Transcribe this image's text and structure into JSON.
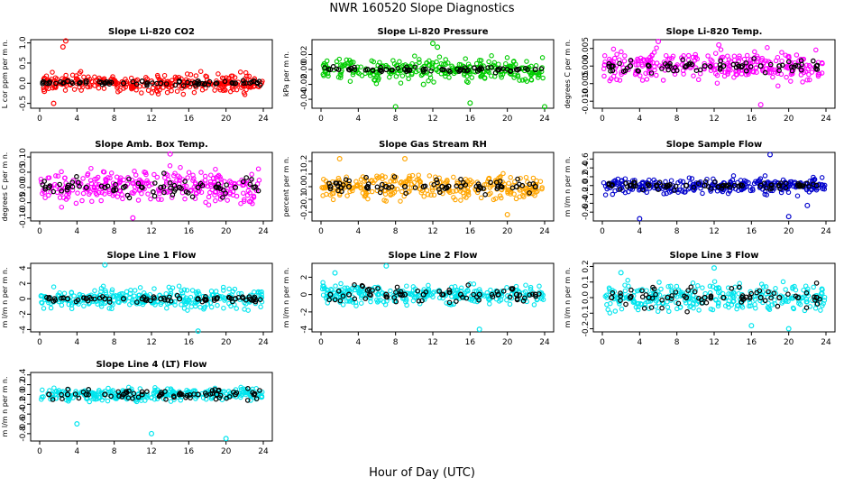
{
  "title": "NWR  160520  Slope Diagnostics",
  "xlabel": "Hour of Day (UTC)",
  "colors": {
    "background": "#ffffff",
    "overlay": "#000000",
    "axis": "#000000"
  },
  "chart_data": [
    {
      "type": "scatter",
      "title": "Slope Li-820 CO2",
      "ylabel": "L cor ppm per m n.",
      "color": "#ff0000",
      "xlim": [
        0,
        24
      ],
      "ylim": [
        -0.62,
        1.08
      ],
      "x_ticks": [
        0,
        4,
        8,
        12,
        16,
        20,
        24
      ],
      "y_ticks": [
        -0.5,
        0.0,
        0.5,
        1.0
      ],
      "y_tick_labels": [
        "-0.5",
        "0.0",
        "0.5",
        "1.0"
      ],
      "spread": 0.18,
      "overlay_spread": 0.05,
      "series": [
        {
          "x": [
            0.5,
            1.5,
            2.5,
            2.8,
            4,
            6,
            8,
            10,
            12,
            14,
            16,
            18,
            20,
            22,
            23.8
          ],
          "y": [
            -0.2,
            -0.5,
            0.9,
            1.05,
            0.0,
            0.05,
            0.0,
            0.0,
            0.05,
            0.0,
            0.05,
            0.0,
            0.05,
            0.0,
            0.0
          ]
        }
      ],
      "overlay": {
        "x": [
          1,
          3,
          5,
          7,
          9,
          11,
          13,
          15,
          17,
          19,
          21,
          23
        ],
        "y": [
          0.0,
          0.05,
          0.05,
          0.0,
          0.0,
          0.05,
          0.0,
          0.05,
          0.05,
          0.0,
          0.0,
          0.05
        ]
      }
    },
    {
      "type": "scatter",
      "title": "Slope Li-820 Pressure",
      "ylabel": "kPa per m n.",
      "color": "#00cc00",
      "xlim": [
        0,
        24
      ],
      "ylim": [
        -0.052,
        0.04
      ],
      "x_ticks": [
        0,
        4,
        8,
        12,
        16,
        20,
        24
      ],
      "y_ticks": [
        -0.04,
        -0.02,
        0.0,
        0.02
      ],
      "y_tick_labels": [
        "-0.04",
        "-0.02",
        "0.00",
        "0.02"
      ],
      "spread": 0.012,
      "overlay_spread": 0.003,
      "series": [
        {
          "x": [
            8,
            12,
            16,
            24,
            12.5,
            11
          ],
          "y": [
            -0.05,
            0.035,
            -0.045,
            -0.05,
            0.03,
            -0.02
          ]
        }
      ],
      "overlay": {
        "x": [
          1,
          3,
          5,
          7,
          9,
          11,
          13,
          15,
          17,
          19,
          21,
          23
        ],
        "y": [
          0.0,
          0.0,
          0.0,
          0.0,
          0.0,
          0.0,
          0.0,
          0.0,
          0.0,
          0.0,
          0.0,
          0.0
        ]
      }
    },
    {
      "type": "scatter",
      "title": "Slope Li-820 Temp.",
      "ylabel": "degrees C per m n.",
      "color": "#ff00ff",
      "xlim": [
        0,
        24
      ],
      "ylim": [
        -0.012,
        0.0075
      ],
      "x_ticks": [
        0,
        4,
        8,
        12,
        16,
        20,
        24
      ],
      "y_ticks": [
        -0.01,
        -0.005,
        0.0,
        0.005
      ],
      "y_tick_labels": [
        "-0.010",
        "-0.005",
        "0.000",
        "0.005"
      ],
      "spread": 0.0035,
      "overlay_spread": 0.002,
      "series": [
        {
          "x": [
            6,
            17,
            12.5
          ],
          "y": [
            0.007,
            -0.011,
            0.006
          ]
        }
      ],
      "overlay": {
        "x": [
          1,
          3,
          5,
          7,
          9,
          11,
          13,
          15,
          17,
          19,
          21,
          23
        ],
        "y": [
          0.0,
          0.0,
          0.0,
          0.0,
          0.0,
          0.0,
          0.0,
          0.0,
          0.0,
          0.0,
          0.0,
          0.0
        ]
      }
    },
    {
      "type": "scatter",
      "title": "Slope Amb. Box Temp.",
      "ylabel": "degrees C per m n.",
      "color": "#ff00ff",
      "xlim": [
        0,
        24
      ],
      "ylim": [
        -0.11,
        0.115
      ],
      "x_ticks": [
        0,
        4,
        8,
        12,
        16,
        20,
        24
      ],
      "y_ticks": [
        -0.1,
        -0.05,
        0.0,
        0.05,
        0.1
      ],
      "y_tick_labels": [
        "-0.10",
        "-0.05",
        "0.00",
        "0.05",
        "0.10"
      ],
      "spread": 0.045,
      "overlay_spread": 0.03,
      "series": [
        {
          "x": [
            14,
            10
          ],
          "y": [
            0.11,
            -0.1
          ]
        }
      ],
      "overlay": {
        "x": [
          1,
          3,
          5,
          7,
          9,
          11,
          13,
          15,
          17,
          19,
          21,
          23
        ],
        "y": [
          0.0,
          0.0,
          0.0,
          0.0,
          0.0,
          0.0,
          0.0,
          0.0,
          0.0,
          0.0,
          0.0,
          0.0
        ]
      }
    },
    {
      "type": "scatter",
      "title": "Slope Gas Stream RH",
      "ylabel": "percent per m n.",
      "color": "#ffa500",
      "xlim": [
        0,
        24
      ],
      "ylim": [
        -0.27,
        0.27
      ],
      "x_ticks": [
        0,
        4,
        8,
        12,
        16,
        20,
        24
      ],
      "y_ticks": [
        -0.2,
        -0.1,
        0.0,
        0.1,
        0.2
      ],
      "y_tick_labels": [
        "-0.2",
        "-0.1",
        "0.0",
        "0.1",
        "0.2"
      ],
      "spread": 0.08,
      "overlay_spread": 0.05,
      "series": [
        {
          "x": [
            2,
            9,
            20
          ],
          "y": [
            0.22,
            0.22,
            -0.22
          ]
        }
      ],
      "overlay": {
        "x": [
          1,
          3,
          5,
          7,
          9,
          11,
          13,
          15,
          17,
          19,
          21,
          23
        ],
        "y": [
          0.0,
          0.0,
          0.0,
          0.0,
          0.0,
          0.0,
          0.0,
          0.0,
          0.0,
          0.0,
          0.0,
          0.0
        ]
      }
    },
    {
      "type": "scatter",
      "title": "Slope Sample Flow",
      "ylabel": "m l/m n per m n.",
      "color": "#0000cc",
      "xlim": [
        0,
        24
      ],
      "ylim": [
        -0.8,
        0.75
      ],
      "x_ticks": [
        0,
        4,
        8,
        12,
        16,
        20,
        24
      ],
      "y_ticks": [
        -0.6,
        -0.4,
        -0.2,
        0.0,
        0.2,
        0.4,
        0.6
      ],
      "y_tick_labels": [
        "-0.6",
        "-0.4",
        "-0.2",
        "0.0",
        "0.2",
        "0.4",
        "0.6"
      ],
      "spread": 0.15,
      "overlay_spread": 0.08,
      "series": [
        {
          "x": [
            4,
            18,
            20,
            22
          ],
          "y": [
            -0.75,
            0.7,
            -0.7,
            -0.45
          ]
        }
      ],
      "overlay": {
        "x": [
          1,
          3,
          5,
          7,
          9,
          11,
          13,
          15,
          17,
          19,
          21,
          23
        ],
        "y": [
          0.0,
          0.0,
          0.0,
          0.0,
          0.0,
          0.0,
          0.0,
          0.0,
          0.0,
          0.0,
          0.0,
          0.0
        ]
      }
    },
    {
      "type": "scatter",
      "title": "Slope Line 1 Flow",
      "ylabel": "m l/m n per m n.",
      "color": "#00e5ee",
      "xlim": [
        0,
        24
      ],
      "ylim": [
        -4.3,
        4.6
      ],
      "x_ticks": [
        0,
        4,
        8,
        12,
        16,
        20,
        24
      ],
      "y_ticks": [
        -4,
        -2,
        0,
        2,
        4
      ],
      "y_tick_labels": [
        "-4",
        "-2",
        "0",
        "2",
        "4"
      ],
      "spread": 1.1,
      "overlay_spread": 0.35,
      "series": [
        {
          "x": [
            7,
            17
          ],
          "y": [
            4.4,
            -4.2
          ]
        }
      ],
      "overlay": {
        "x": [
          1,
          3,
          5,
          7,
          9,
          11,
          13,
          15,
          17,
          19,
          21,
          23
        ],
        "y": [
          0.0,
          0.0,
          0.0,
          0.0,
          0.0,
          0.0,
          0.0,
          0.0,
          0.0,
          0.0,
          0.0,
          0.0
        ]
      }
    },
    {
      "type": "scatter",
      "title": "Slope Line 2 Flow",
      "ylabel": "m l/m n per m n.",
      "color": "#00e5ee",
      "xlim": [
        0,
        24
      ],
      "ylim": [
        -4.3,
        3.6
      ],
      "x_ticks": [
        0,
        4,
        8,
        12,
        16,
        20,
        24
      ],
      "y_ticks": [
        -4,
        -2,
        0,
        2
      ],
      "y_tick_labels": [
        "-4",
        "-2",
        "0",
        "2"
      ],
      "spread": 1.0,
      "overlay_spread": 0.8,
      "series": [
        {
          "x": [
            17,
            7,
            1.5
          ],
          "y": [
            -4.0,
            3.3,
            2.5
          ]
        }
      ],
      "overlay": {
        "x": [
          1,
          3,
          5,
          7,
          9,
          11,
          13,
          15,
          17,
          19,
          21,
          23
        ],
        "y": [
          0.0,
          0.0,
          0.5,
          0.0,
          0.0,
          0.0,
          0.0,
          0.0,
          0.0,
          0.0,
          0.0,
          0.0
        ]
      }
    },
    {
      "type": "scatter",
      "title": "Slope Line 3 Flow",
      "ylabel": "m l/m n per m n.",
      "color": "#00e5ee",
      "xlim": [
        0,
        24
      ],
      "ylim": [
        -0.22,
        0.22
      ],
      "x_ticks": [
        0,
        4,
        8,
        12,
        16,
        20,
        24
      ],
      "y_ticks": [
        -0.2,
        -0.1,
        0.0,
        0.1,
        0.2
      ],
      "y_tick_labels": [
        "-0.2",
        "-0.1",
        "0.0",
        "0.1",
        "0.2"
      ],
      "spread": 0.07,
      "overlay_spread": 0.06,
      "series": [
        {
          "x": [
            12,
            16,
            20,
            2
          ],
          "y": [
            0.19,
            -0.18,
            -0.2,
            0.16
          ]
        }
      ],
      "overlay": {
        "x": [
          1,
          3,
          5,
          7,
          9,
          11,
          13,
          15,
          17,
          19,
          21,
          23
        ],
        "y": [
          0.0,
          0.0,
          0.0,
          0.0,
          0.0,
          0.0,
          0.0,
          0.0,
          0.0,
          0.0,
          0.0,
          0.0
        ]
      }
    },
    {
      "type": "scatter",
      "title": "Slope Line 4 (LT) Flow",
      "ylabel": "m l/m n per m n.",
      "color": "#00e5ee",
      "xlim": [
        0,
        24
      ],
      "ylim": [
        -0.95,
        0.45
      ],
      "x_ticks": [
        0,
        4,
        8,
        12,
        16,
        20,
        24
      ],
      "y_ticks": [
        -0.8,
        -0.6,
        -0.4,
        -0.2,
        0.0,
        0.2,
        0.4
      ],
      "y_tick_labels": [
        "-0.8",
        "-0.6",
        "-0.4",
        "-0.2",
        "0.0",
        "0.2",
        "0.4"
      ],
      "spread": 0.1,
      "overlay_spread": 0.1,
      "series": [
        {
          "x": [
            12,
            20,
            4
          ],
          "y": [
            -0.8,
            -0.9,
            -0.6
          ]
        }
      ],
      "overlay": {
        "x": [
          1,
          3,
          5,
          7,
          9,
          11,
          13,
          15,
          17,
          19,
          21,
          23
        ],
        "y": [
          0.0,
          0.0,
          0.0,
          0.0,
          0.0,
          0.0,
          0.0,
          0.0,
          0.0,
          0.0,
          0.0,
          0.0
        ]
      }
    }
  ]
}
